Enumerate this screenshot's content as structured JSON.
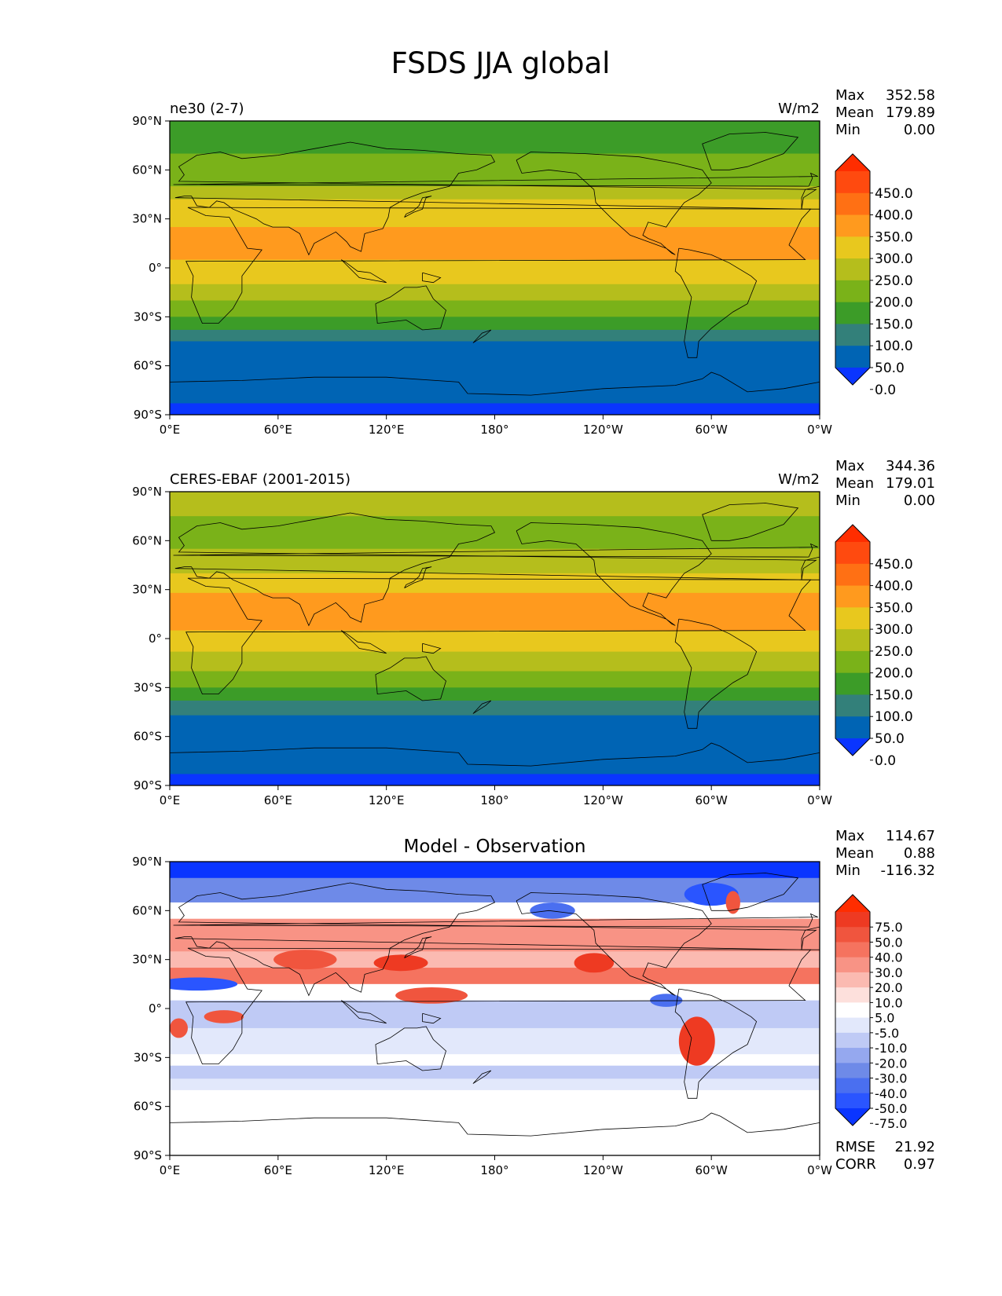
{
  "figure_title": "FSDS JJA global",
  "chart_data": [
    {
      "type": "heatmap",
      "panel": "model",
      "title_left": "ne30 (2-7)",
      "title_right": "W/m2",
      "title_center": "",
      "stats": [
        [
          "Max",
          "352.58"
        ],
        [
          "Mean",
          "179.89"
        ],
        [
          "Min",
          "0.00"
        ]
      ],
      "xticks": [
        "0°E",
        "60°E",
        "120°E",
        "180°",
        "120°W",
        "60°W",
        "0°W"
      ],
      "yticks": [
        "90°N",
        "60°N",
        "30°N",
        "0°",
        "30°S",
        "60°S",
        "90°S"
      ],
      "xlim": [
        0,
        360
      ],
      "ylim": [
        -90,
        90
      ],
      "colorbar": {
        "labels": [
          "450.0",
          "400.0",
          "350.0",
          "300.0",
          "250.0",
          "200.0",
          "150.0",
          "100.0",
          "50.0",
          "0.0"
        ],
        "colors": [
          "#0a35ff",
          "#0064b4",
          "#33807a",
          "#3c9c28",
          "#7ab219",
          "#b5be1c",
          "#e8c81e",
          "#ff9a1e",
          "#ff7014",
          "#ff4a0f",
          "#ff2d00"
        ],
        "extend": "both"
      },
      "bands": [
        {
          "lat_top": 90,
          "value": 100
        },
        {
          "lat_top": 70,
          "value": 150
        },
        {
          "lat_top": 50,
          "value": 200
        },
        {
          "lat_top": 42,
          "value": 250
        },
        {
          "lat_top": 25,
          "value": 300
        },
        {
          "lat_top": 5,
          "value": 250
        },
        {
          "lat_top": -10,
          "value": 200
        },
        {
          "lat_top": -20,
          "value": 150
        },
        {
          "lat_top": -30,
          "value": 100
        },
        {
          "lat_top": -38,
          "value": 50
        },
        {
          "lat_top": -45,
          "value": 0
        },
        {
          "lat_top": -83,
          "value": -10
        }
      ]
    },
    {
      "type": "heatmap",
      "panel": "observation",
      "title_left": "CERES-EBAF (2001-2015)",
      "title_right": "W/m2",
      "title_center": "",
      "stats": [
        [
          "Max",
          "344.36"
        ],
        [
          "Mean",
          "179.01"
        ],
        [
          "Min",
          "0.00"
        ]
      ],
      "xticks": [
        "0°E",
        "60°E",
        "120°E",
        "180°",
        "120°W",
        "60°W",
        "0°W"
      ],
      "yticks": [
        "90°N",
        "60°N",
        "30°N",
        "0°",
        "30°S",
        "60°S",
        "90°S"
      ],
      "xlim": [
        0,
        360
      ],
      "ylim": [
        -90,
        90
      ],
      "colorbar": {
        "labels": [
          "450.0",
          "400.0",
          "350.0",
          "300.0",
          "250.0",
          "200.0",
          "150.0",
          "100.0",
          "50.0",
          "0.0"
        ],
        "colors": [
          "#0a35ff",
          "#0064b4",
          "#33807a",
          "#3c9c28",
          "#7ab219",
          "#b5be1c",
          "#e8c81e",
          "#ff9a1e",
          "#ff7014",
          "#ff4a0f",
          "#ff2d00"
        ],
        "extend": "both"
      },
      "bands": [
        {
          "lat_top": 90,
          "value": 200
        },
        {
          "lat_top": 75,
          "value": 150
        },
        {
          "lat_top": 55,
          "value": 200
        },
        {
          "lat_top": 40,
          "value": 250
        },
        {
          "lat_top": 28,
          "value": 300
        },
        {
          "lat_top": 5,
          "value": 250
        },
        {
          "lat_top": -8,
          "value": 200
        },
        {
          "lat_top": -20,
          "value": 150
        },
        {
          "lat_top": -30,
          "value": 100
        },
        {
          "lat_top": -38,
          "value": 50
        },
        {
          "lat_top": -47,
          "value": 0
        },
        {
          "lat_top": -83,
          "value": -10
        }
      ]
    },
    {
      "type": "heatmap",
      "panel": "difference",
      "title_left": "",
      "title_right": "",
      "title_center": "Model - Observation",
      "stats": [
        [
          "Max",
          "114.67"
        ],
        [
          "Mean",
          "0.88"
        ],
        [
          "Min",
          "-116.32"
        ]
      ],
      "extra_stats": [
        [
          "RMSE",
          "21.92"
        ],
        [
          "CORR",
          "0.97"
        ]
      ],
      "xticks": [
        "0°E",
        "60°E",
        "120°E",
        "180°",
        "120°W",
        "60°W",
        "0°W"
      ],
      "yticks": [
        "90°N",
        "60°N",
        "30°N",
        "0°",
        "30°S",
        "60°S",
        "90°S"
      ],
      "xlim": [
        0,
        360
      ],
      "ylim": [
        -90,
        90
      ],
      "colorbar": {
        "labels": [
          "75.0",
          "50.0",
          "40.0",
          "30.0",
          "20.0",
          "10.0",
          "5.0",
          "-5.0",
          "-10.0",
          "-20.0",
          "-30.0",
          "-40.0",
          "-50.0",
          "-75.0"
        ],
        "colors": [
          "#0a35ff",
          "#2a55ff",
          "#4a6ff0",
          "#6e8ae8",
          "#95a8ef",
          "#bfcaf5",
          "#e2e8fb",
          "#ffffff",
          "#fde0dc",
          "#fbbab1",
          "#f89385",
          "#f5735f",
          "#f0553e",
          "#ee3a22",
          "#ff2d00"
        ],
        "extend": "both"
      },
      "bands": [
        {
          "lat_top": 90,
          "value": -80
        },
        {
          "lat_top": 80,
          "value": -35
        },
        {
          "lat_top": 65,
          "value": 3
        },
        {
          "lat_top": 55,
          "value": 25
        },
        {
          "lat_top": 35,
          "value": 15
        },
        {
          "lat_top": 25,
          "value": 35
        },
        {
          "lat_top": 15,
          "value": 3
        },
        {
          "lat_top": 5,
          "value": -15
        },
        {
          "lat_top": -12,
          "value": -8
        },
        {
          "lat_top": -28,
          "value": 3
        },
        {
          "lat_top": -35,
          "value": -20
        },
        {
          "lat_top": -43,
          "value": -8
        },
        {
          "lat_top": -50,
          "value": 0
        }
      ],
      "features": [
        {
          "lon": 75,
          "lat": 30,
          "w": 35,
          "h": 12,
          "value": 45
        },
        {
          "lon": 128,
          "lat": 28,
          "w": 30,
          "h": 10,
          "value": 60
        },
        {
          "lon": 145,
          "lat": 8,
          "w": 40,
          "h": 10,
          "value": 45
        },
        {
          "lon": 235,
          "lat": 28,
          "w": 22,
          "h": 12,
          "value": 60
        },
        {
          "lon": 292,
          "lat": -20,
          "w": 20,
          "h": 30,
          "value": 60
        },
        {
          "lon": 15,
          "lat": 15,
          "w": 45,
          "h": 8,
          "value": -55
        },
        {
          "lon": 30,
          "lat": -5,
          "w": 22,
          "h": 8,
          "value": 45
        },
        {
          "lon": 5,
          "lat": -12,
          "w": 10,
          "h": 12,
          "value": 45
        },
        {
          "lon": 275,
          "lat": 5,
          "w": 18,
          "h": 8,
          "value": -45
        },
        {
          "lon": 300,
          "lat": 70,
          "w": 30,
          "h": 14,
          "value": -60
        },
        {
          "lon": 312,
          "lat": 65,
          "w": 8,
          "h": 14,
          "value": 45
        },
        {
          "lon": 212,
          "lat": 60,
          "w": 25,
          "h": 10,
          "value": -45
        }
      ]
    }
  ]
}
